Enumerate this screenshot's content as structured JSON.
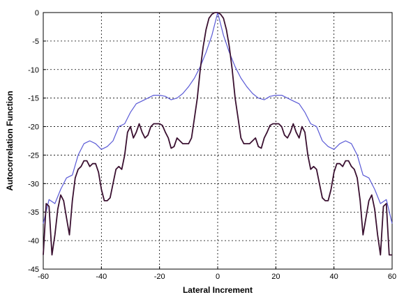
{
  "chart_data": {
    "type": "line",
    "title": "",
    "xlabel": "Lateral Increment",
    "ylabel": "Autocorrelation Function",
    "xlim": [
      -60,
      60
    ],
    "ylim": [
      -45,
      0
    ],
    "xticks": [
      -60,
      -40,
      -20,
      0,
      20,
      40,
      60
    ],
    "yticks": [
      0,
      -5,
      -10,
      -15,
      -20,
      -25,
      -30,
      -35,
      -40,
      -45
    ],
    "xtick_labels": [
      "-60",
      "-40",
      "-20",
      "0",
      "20",
      "40",
      "60"
    ],
    "ytick_labels": [
      "0",
      "-5",
      "-10",
      "-15",
      "-20",
      "-25",
      "-30",
      "-35",
      "-40",
      "-45"
    ],
    "grid": true,
    "series": [
      {
        "color": "#5a5ad6",
        "x": [
          -60,
          -58,
          -56,
          -54,
          -52,
          -50,
          -48,
          -46,
          -44,
          -42,
          -40,
          -38,
          -36,
          -34,
          -32,
          -30,
          -28,
          -26,
          -24,
          -22,
          -20,
          -18,
          -16,
          -14,
          -12,
          -10,
          -8,
          -6,
          -4,
          -2,
          0,
          2,
          4,
          6,
          8,
          10,
          12,
          14,
          16,
          18,
          20,
          22,
          24,
          26,
          28,
          30,
          32,
          34,
          36,
          38,
          40,
          42,
          44,
          46,
          48,
          50,
          52,
          54,
          56,
          58,
          60
        ],
        "y": [
          -37,
          -32.8,
          -33.5,
          -31,
          -29,
          -28.5,
          -25,
          -23,
          -22.5,
          -23,
          -24,
          -23.5,
          -22.5,
          -20,
          -19.5,
          -17.5,
          -16,
          -15.5,
          -15,
          -14.5,
          -14.5,
          -14.7,
          -15.3,
          -15,
          -14.2,
          -13,
          -11.5,
          -9.5,
          -7,
          -4,
          0,
          -4,
          -7,
          -9.5,
          -11.5,
          -13,
          -14.2,
          -15,
          -15.3,
          -14.7,
          -14.5,
          -14.5,
          -15,
          -15.5,
          -16,
          -17.5,
          -19.5,
          -20,
          -22.5,
          -23.5,
          -24,
          -23,
          -22.5,
          -23,
          -25,
          -28.5,
          -29,
          -31,
          -33.5,
          -32.8,
          -37
        ]
      },
      {
        "color": "#3a1030",
        "x": [
          -60,
          -59,
          -58,
          -57,
          -56,
          -55,
          -54,
          -53,
          -52,
          -51,
          -50,
          -49,
          -48,
          -47,
          -46,
          -45,
          -44,
          -43,
          -42,
          -41,
          -40,
          -39,
          -38,
          -37,
          -36,
          -35,
          -34,
          -33,
          -32,
          -31,
          -30,
          -29,
          -28,
          -27,
          -26,
          -25,
          -24,
          -23,
          -22,
          -21,
          -20,
          -19,
          -18,
          -17,
          -16,
          -15,
          -14,
          -13,
          -12,
          -11,
          -10,
          -9,
          -8,
          -7,
          -6,
          -5,
          -4,
          -3,
          -2,
          -1,
          0,
          1,
          2,
          3,
          4,
          5,
          6,
          7,
          8,
          9,
          10,
          11,
          12,
          13,
          14,
          15,
          16,
          17,
          18,
          19,
          20,
          21,
          22,
          23,
          24,
          25,
          26,
          27,
          28,
          29,
          30,
          31,
          32,
          33,
          34,
          35,
          36,
          37,
          38,
          39,
          40,
          41,
          42,
          43,
          44,
          45,
          46,
          47,
          48,
          49,
          50,
          51,
          52,
          53,
          54,
          55,
          56,
          57,
          58,
          59,
          60
        ],
        "y": [
          -42.5,
          -33.5,
          -34,
          -42.5,
          -39,
          -34.5,
          -32,
          -33,
          -36,
          -39,
          -33,
          -29,
          -27.5,
          -27,
          -26,
          -26,
          -27,
          -26.5,
          -26.5,
          -28,
          -31,
          -33,
          -33,
          -32.5,
          -30,
          -27.5,
          -27,
          -27.5,
          -25,
          -21,
          -20,
          -22,
          -21,
          -19.5,
          -21,
          -22,
          -21.5,
          -20,
          -19.5,
          -19.5,
          -19.5,
          -19.8,
          -21,
          -22,
          -23.8,
          -23.5,
          -22,
          -22.5,
          -23,
          -23,
          -23,
          -22,
          -18.5,
          -15,
          -10,
          -6,
          -3,
          -1,
          -0.3,
          0,
          0,
          -0.3,
          -1,
          -3,
          -6,
          -10,
          -15,
          -18.5,
          -22,
          -23,
          -23,
          -23,
          -22.5,
          -22,
          -23.5,
          -23.8,
          -22,
          -21,
          -19.8,
          -19.5,
          -19.5,
          -19.5,
          -20,
          -21.5,
          -22,
          -21,
          -19.5,
          -21,
          -22,
          -20,
          -21,
          -25,
          -27.5,
          -27,
          -27.5,
          -30,
          -32.5,
          -33,
          -33,
          -31,
          -28,
          -26.5,
          -26.5,
          -27,
          -26,
          -26,
          -27,
          -27.5,
          -29,
          -33,
          -39,
          -36,
          -33,
          -32,
          -34.5,
          -39,
          -42.5,
          -34,
          -33.5,
          -42.5,
          -42.5
        ]
      }
    ]
  }
}
